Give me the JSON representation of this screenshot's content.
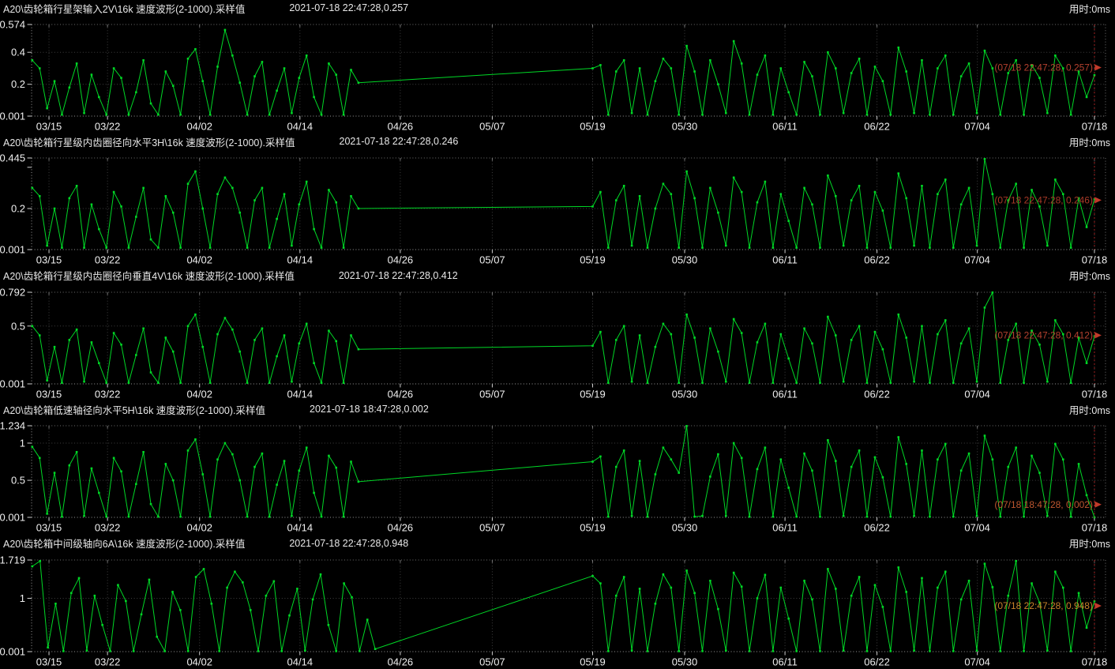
{
  "ui": {
    "background": "#000000",
    "trace_color": "#00d826",
    "grid_color": "#3f3f3f",
    "border_color": "#707070",
    "tick_color": "#cfcfcf",
    "label_color": "#f0f0f0",
    "cursor_color": "#a02020",
    "cursor_x_label": "07/18"
  },
  "x_axis": {
    "tick_labels": [
      "03/15",
      "03/22",
      "04/02",
      "04/14",
      "04/26",
      "05/07",
      "05/19",
      "05/30",
      "06/11",
      "06/22",
      "07/04",
      "07/18"
    ],
    "tick_days": [
      0,
      7,
      18,
      30,
      42,
      53,
      65,
      76,
      88,
      99,
      111,
      125
    ],
    "total_days": 125,
    "range": [
      "03/15",
      "07/18"
    ]
  },
  "chart_data": [
    {
      "type": "line",
      "title": "A20\\齿轮箱行星架输入2V\\16k 速度波形(2-1000).采样值",
      "timestamp": "2021-07-18 22:47:28,0.257",
      "elapsed": "用时:0ms",
      "annotation": "(07/18 22:47:28, 0.257)",
      "annotation_color": "#b5412f",
      "annotation_frac": 0.47,
      "ylim": [
        0.001,
        0.574
      ],
      "y_ticks": [
        {
          "value": 0.574,
          "label": "0.574",
          "grid": false
        },
        {
          "value": 0.4,
          "label": "0.4",
          "grid": true
        },
        {
          "value": 0.2,
          "label": "0.2",
          "grid": true
        },
        {
          "value": 0.001,
          "label": "0.001",
          "grid": false
        }
      ],
      "last_point": {
        "date": "07/18",
        "time": "22:47:28",
        "value": 0.257
      },
      "segments": [
        {
          "start_day": -2,
          "end_day": 37,
          "values": [
            0.35,
            0.3,
            0.05,
            0.22,
            0.01,
            0.18,
            0.33,
            0.02,
            0.26,
            0.12,
            0.01,
            0.3,
            0.24,
            0.01,
            0.15,
            0.35,
            0.08,
            0.01,
            0.28,
            0.19,
            0.01,
            0.36,
            0.42,
            0.22,
            0.01,
            0.31,
            0.54,
            0.38,
            0.21,
            0.01,
            0.25,
            0.34,
            0.01,
            0.16,
            0.3,
            0.02,
            0.24,
            0.38,
            0.12,
            0.01,
            0.33,
            0.26,
            0.01,
            0.29,
            0.21
          ]
        },
        {
          "start_day": 65,
          "end_day": 125,
          "values": [
            0.3,
            0.32,
            0.01,
            0.28,
            0.35,
            0.02,
            0.3,
            0.01,
            0.22,
            0.36,
            0.3,
            0.01,
            0.44,
            0.28,
            0.01,
            0.35,
            0.2,
            0.02,
            0.47,
            0.33,
            0.01,
            0.26,
            0.38,
            0.01,
            0.3,
            0.15,
            0.01,
            0.34,
            0.25,
            0.01,
            0.4,
            0.3,
            0.02,
            0.27,
            0.36,
            0.01,
            0.31,
            0.22,
            0.01,
            0.43,
            0.28,
            0.02,
            0.35,
            0.01,
            0.3,
            0.38,
            0.01,
            0.25,
            0.33,
            0.02,
            0.41,
            0.3,
            0.01,
            0.27,
            0.35,
            0.01,
            0.32,
            0.24,
            0.02,
            0.38,
            0.3,
            0.01,
            0.28,
            0.12,
            0.257
          ]
        }
      ]
    },
    {
      "type": "line",
      "title": "A20\\齿轮箱行星级内齿圈径向水平3H\\16k 速度波形(2-1000).采样值",
      "timestamp": "2021-07-18 22:47:28,0.246",
      "elapsed": "用时:0ms",
      "annotation": "(07/18 22:47:28, 0.246)",
      "annotation_color": "#a93a28",
      "annotation_frac": 0.46,
      "ylim": [
        0.001,
        0.445
      ],
      "y_ticks": [
        {
          "value": 0.445,
          "label": "0.445",
          "grid": false
        },
        {
          "value": 0.4,
          "label": "",
          "grid": false
        },
        {
          "value": 0.2,
          "label": "0.2",
          "grid": true
        },
        {
          "value": 0.001,
          "label": "0.001",
          "grid": false
        }
      ],
      "last_point": {
        "date": "07/18",
        "time": "22:47:28",
        "value": 0.246
      },
      "segments": [
        {
          "start_day": -2,
          "end_day": 37,
          "values": [
            0.3,
            0.26,
            0.02,
            0.2,
            0.01,
            0.25,
            0.31,
            0.01,
            0.22,
            0.1,
            0.01,
            0.28,
            0.21,
            0.01,
            0.16,
            0.3,
            0.05,
            0.01,
            0.26,
            0.18,
            0.01,
            0.32,
            0.38,
            0.2,
            0.01,
            0.27,
            0.35,
            0.3,
            0.18,
            0.01,
            0.24,
            0.3,
            0.01,
            0.15,
            0.27,
            0.02,
            0.22,
            0.33,
            0.1,
            0.01,
            0.29,
            0.23,
            0.01,
            0.26,
            0.2
          ]
        },
        {
          "start_day": 65,
          "end_day": 125,
          "values": [
            0.21,
            0.28,
            0.01,
            0.24,
            0.31,
            0.02,
            0.26,
            0.01,
            0.2,
            0.32,
            0.27,
            0.01,
            0.38,
            0.25,
            0.01,
            0.3,
            0.18,
            0.02,
            0.35,
            0.28,
            0.01,
            0.23,
            0.33,
            0.01,
            0.27,
            0.14,
            0.01,
            0.3,
            0.22,
            0.01,
            0.36,
            0.26,
            0.02,
            0.24,
            0.31,
            0.01,
            0.28,
            0.19,
            0.01,
            0.37,
            0.25,
            0.02,
            0.31,
            0.01,
            0.27,
            0.34,
            0.01,
            0.22,
            0.3,
            0.02,
            0.44,
            0.27,
            0.01,
            0.24,
            0.32,
            0.01,
            0.29,
            0.21,
            0.02,
            0.34,
            0.27,
            0.01,
            0.25,
            0.11,
            0.246
          ]
        }
      ]
    },
    {
      "type": "line",
      "title": "A20\\齿轮箱行星级内齿圈径向垂直4V\\16k 速度波形(2-1000).采样值",
      "timestamp": "2021-07-18 22:47:28,0.412",
      "elapsed": "用时:0ms",
      "annotation": "(07/18 22:47:28, 0.412)",
      "annotation_color": "#b5412f",
      "annotation_frac": 0.47,
      "ylim": [
        0.001,
        0.792
      ],
      "y_ticks": [
        {
          "value": 0.792,
          "label": "0.792",
          "grid": false
        },
        {
          "value": 0.5,
          "label": "0.5",
          "grid": true
        },
        {
          "value": 0.001,
          "label": "0.001",
          "grid": false
        }
      ],
      "last_point": {
        "date": "07/18",
        "time": "22:47:28",
        "value": 0.412
      },
      "segments": [
        {
          "start_day": -2,
          "end_day": 37,
          "values": [
            0.5,
            0.42,
            0.03,
            0.32,
            0.01,
            0.38,
            0.47,
            0.02,
            0.36,
            0.18,
            0.01,
            0.44,
            0.34,
            0.01,
            0.25,
            0.48,
            0.1,
            0.01,
            0.4,
            0.28,
            0.01,
            0.5,
            0.6,
            0.32,
            0.01,
            0.43,
            0.57,
            0.47,
            0.28,
            0.01,
            0.38,
            0.48,
            0.01,
            0.24,
            0.42,
            0.02,
            0.35,
            0.52,
            0.18,
            0.01,
            0.46,
            0.37,
            0.01,
            0.42,
            0.3
          ]
        },
        {
          "start_day": 65,
          "end_day": 125,
          "values": [
            0.33,
            0.45,
            0.01,
            0.38,
            0.5,
            0.02,
            0.42,
            0.01,
            0.32,
            0.52,
            0.43,
            0.01,
            0.6,
            0.4,
            0.01,
            0.48,
            0.28,
            0.02,
            0.56,
            0.44,
            0.01,
            0.36,
            0.52,
            0.01,
            0.43,
            0.22,
            0.01,
            0.48,
            0.35,
            0.01,
            0.58,
            0.42,
            0.02,
            0.38,
            0.5,
            0.01,
            0.45,
            0.3,
            0.01,
            0.6,
            0.4,
            0.02,
            0.5,
            0.01,
            0.43,
            0.55,
            0.01,
            0.35,
            0.48,
            0.02,
            0.66,
            0.79,
            0.01,
            0.38,
            0.52,
            0.01,
            0.46,
            0.34,
            0.02,
            0.55,
            0.43,
            0.01,
            0.4,
            0.18,
            0.412
          ]
        }
      ]
    },
    {
      "type": "line",
      "title": "A20\\齿轮箱低速轴径向水平5H\\16k 速度波形(2-1000).采样值",
      "timestamp": "2021-07-18 18:47:28,0.002",
      "elapsed": "用时:0ms",
      "annotation": "(07/18 18:47:28, 0.002)",
      "annotation_color": "#bf5730",
      "annotation_frac": 0.86,
      "ylim": [
        0.001,
        1.234
      ],
      "y_ticks": [
        {
          "value": 1.234,
          "label": "1.234",
          "grid": false
        },
        {
          "value": 1.0,
          "label": "1",
          "grid": true
        },
        {
          "value": 0.5,
          "label": "0.5",
          "grid": true
        },
        {
          "value": 0.001,
          "label": "0.001",
          "grid": false
        }
      ],
      "last_point": {
        "date": "07/18",
        "time": "18:47:28",
        "value": 0.002
      },
      "segments": [
        {
          "start_day": -2,
          "end_day": 37,
          "values": [
            0.95,
            0.8,
            0.05,
            0.6,
            0.01,
            0.7,
            0.88,
            0.02,
            0.66,
            0.33,
            0.01,
            0.8,
            0.62,
            0.01,
            0.45,
            0.88,
            0.18,
            0.01,
            0.72,
            0.5,
            0.01,
            0.9,
            1.05,
            0.58,
            0.01,
            0.78,
            1.0,
            0.85,
            0.5,
            0.01,
            0.68,
            0.86,
            0.01,
            0.44,
            0.76,
            0.02,
            0.63,
            0.94,
            0.33,
            0.01,
            0.83,
            0.67,
            0.01,
            0.75,
            0.48
          ]
        },
        {
          "start_day": 65,
          "end_day": 125,
          "values": [
            0.75,
            0.82,
            0.01,
            0.68,
            0.9,
            0.02,
            0.76,
            0.01,
            0.58,
            0.94,
            0.78,
            0.6,
            1.23,
            0.01,
            0.02,
            0.55,
            0.85,
            0.02,
            1.0,
            0.8,
            0.01,
            0.65,
            0.94,
            0.01,
            0.78,
            0.4,
            0.01,
            0.86,
            0.63,
            0.01,
            1.04,
            0.76,
            0.02,
            0.68,
            0.9,
            0.01,
            0.81,
            0.54,
            0.01,
            1.08,
            0.72,
            0.02,
            0.9,
            0.01,
            0.78,
            0.99,
            0.01,
            0.63,
            0.86,
            0.02,
            1.1,
            0.78,
            0.01,
            0.68,
            0.94,
            0.01,
            0.83,
            0.6,
            0.02,
            0.99,
            0.78,
            0.01,
            0.72,
            0.3,
            0.002
          ]
        }
      ]
    },
    {
      "type": "line",
      "title": "A20\\齿轮箱中间级轴向6A\\16k 速度波形(2-1000).采样值",
      "timestamp": "2021-07-18 22:47:28,0.948",
      "elapsed": "用时:0ms",
      "annotation": "(07/18 22:47:28, 0.948)",
      "annotation_color": "#c9832b",
      "annotation_frac": 0.5,
      "ylim": [
        0.001,
        1.719
      ],
      "y_ticks": [
        {
          "value": 1.719,
          "label": "1.719",
          "grid": false
        },
        {
          "value": 1.0,
          "label": "1",
          "grid": true
        },
        {
          "value": 0.001,
          "label": "0.001",
          "grid": false
        }
      ],
      "last_point": {
        "date": "07/18",
        "time": "22:47:28",
        "value": 0.948
      },
      "segments": [
        {
          "start_day": -2,
          "end_day": 39,
          "values": [
            1.6,
            1.7,
            0.08,
            0.9,
            0.01,
            1.1,
            1.38,
            0.02,
            1.05,
            0.5,
            0.01,
            1.25,
            0.95,
            0.01,
            0.7,
            1.35,
            0.28,
            0.01,
            1.12,
            0.78,
            0.01,
            1.4,
            1.55,
            0.9,
            0.01,
            1.2,
            1.5,
            1.3,
            0.78,
            0.01,
            1.05,
            1.32,
            0.01,
            0.68,
            1.18,
            0.02,
            0.98,
            1.45,
            0.5,
            0.01,
            1.28,
            1.02,
            0.01,
            0.6,
            0.05
          ]
        },
        {
          "start_day": 65,
          "end_day": 125,
          "values": [
            1.42,
            1.28,
            0.01,
            1.05,
            1.4,
            0.02,
            1.18,
            0.01,
            0.9,
            1.45,
            1.2,
            0.01,
            1.52,
            1.1,
            0.01,
            1.33,
            0.8,
            0.02,
            1.48,
            1.22,
            0.01,
            1.0,
            1.44,
            0.01,
            1.2,
            0.62,
            0.01,
            1.33,
            0.98,
            0.01,
            1.55,
            1.18,
            0.02,
            1.05,
            1.4,
            0.01,
            1.25,
            0.84,
            0.01,
            1.58,
            1.12,
            0.02,
            1.38,
            0.01,
            1.2,
            1.5,
            0.01,
            0.98,
            1.33,
            0.02,
            1.65,
            1.21,
            0.01,
            1.05,
            1.7,
            0.01,
            1.28,
            0.92,
            0.02,
            1.5,
            1.2,
            0.01,
            1.1,
            0.45,
            0.948
          ]
        }
      ]
    }
  ]
}
